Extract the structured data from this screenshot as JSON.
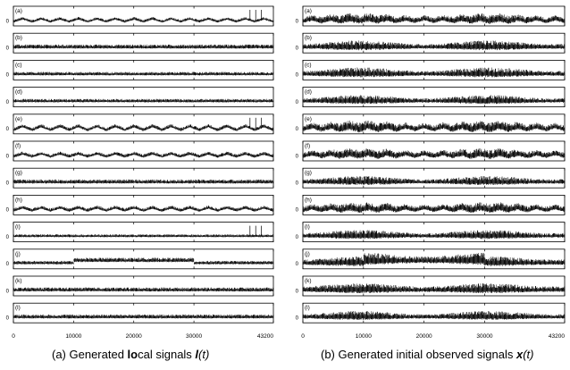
{
  "figure": {
    "captions": [
      {
        "prefix": "(a) Generated ",
        "bold": "lo",
        "middle": "cal signals ",
        "symbol": "l",
        "arg": "(t)"
      },
      {
        "prefix": "(b) Generated initial observed signals ",
        "bold": "",
        "middle": "",
        "symbol": "x",
        "arg": "(t)"
      }
    ]
  },
  "chart_data": [
    {
      "type": "line",
      "title": "",
      "caption": "(a) Generated local signals l(t)",
      "xlabel": "",
      "ylabel": "",
      "xlim": [
        0,
        43200
      ],
      "xticks": [
        0,
        10000,
        20000,
        30000,
        43200
      ],
      "ytick_label": "0",
      "grid": false,
      "series": [
        {
          "name": "",
          "panel_label": "(a)",
          "pattern": "sawtooth oscillation with noise",
          "cycles": 14,
          "amplitude": 0.35,
          "noise": 0.25,
          "spikes": 3
        },
        {
          "name": "",
          "panel_label": "(b)",
          "pattern": "noise",
          "cycles": 0,
          "amplitude": 0.0,
          "noise": 0.35,
          "spikes": 0
        },
        {
          "name": "",
          "panel_label": "(c)",
          "pattern": "noise",
          "cycles": 0,
          "amplitude": 0.0,
          "noise": 0.3,
          "spikes": 0
        },
        {
          "name": "",
          "panel_label": "(d)",
          "pattern": "noise",
          "cycles": 0,
          "amplitude": 0.0,
          "noise": 0.3,
          "spikes": 0
        },
        {
          "name": "",
          "panel_label": "(e)",
          "pattern": "sawtooth oscillation with noise",
          "cycles": 14,
          "amplitude": 0.45,
          "noise": 0.3,
          "spikes": 3
        },
        {
          "name": "",
          "panel_label": "(f)",
          "pattern": "sawtooth oscillation with noise",
          "cycles": 14,
          "amplitude": 0.35,
          "noise": 0.3,
          "spikes": 0
        },
        {
          "name": "",
          "panel_label": "(g)",
          "pattern": "noise",
          "cycles": 0,
          "amplitude": 0.0,
          "noise": 0.35,
          "spikes": 0
        },
        {
          "name": "",
          "panel_label": "(h)",
          "pattern": "sawtooth oscillation with noise",
          "cycles": 14,
          "amplitude": 0.35,
          "noise": 0.3,
          "spikes": 0
        },
        {
          "name": "",
          "panel_label": "(i)",
          "pattern": "noise",
          "cycles": 0,
          "amplitude": 0.0,
          "noise": 0.25,
          "spikes": 3
        },
        {
          "name": "",
          "panel_label": "(j)",
          "pattern": "step: raised level between 10000 and 30000",
          "cycles": 0,
          "amplitude": 0.0,
          "noise": 0.3,
          "spikes": 0,
          "step": [
            10000,
            30000
          ]
        },
        {
          "name": "",
          "panel_label": "(k)",
          "pattern": "noise",
          "cycles": 0,
          "amplitude": 0.0,
          "noise": 0.35,
          "spikes": 0
        },
        {
          "name": "",
          "panel_label": "(l)",
          "pattern": "noise",
          "cycles": 0,
          "amplitude": 0.0,
          "noise": 0.35,
          "spikes": 0
        }
      ]
    },
    {
      "type": "line",
      "title": "",
      "caption": "(b) Generated initial observed signals x(t)",
      "xlabel": "",
      "ylabel": "",
      "xlim": [
        0,
        43200
      ],
      "xticks": [
        0,
        10000,
        20000,
        30000,
        43200
      ],
      "ytick_label": "0",
      "grid": false,
      "series": [
        {
          "name": "",
          "panel_label": "(a)",
          "pattern": "slow envelope plus oscillation",
          "envelope": 0.6,
          "cycles": 14,
          "amplitude": 0.3,
          "noise": 0.55
        },
        {
          "name": "",
          "panel_label": "(b)",
          "pattern": "slow envelope",
          "envelope": 0.8,
          "cycles": 0,
          "amplitude": 0.0,
          "noise": 0.6
        },
        {
          "name": "",
          "panel_label": "(c)",
          "pattern": "slow envelope",
          "envelope": 0.8,
          "cycles": 0,
          "amplitude": 0.0,
          "noise": 0.6
        },
        {
          "name": "",
          "panel_label": "(d)",
          "pattern": "slow envelope",
          "envelope": 0.8,
          "cycles": 0,
          "amplitude": 0.0,
          "noise": 0.55
        },
        {
          "name": "",
          "panel_label": "(e)",
          "pattern": "slow envelope plus oscillation",
          "envelope": 0.6,
          "cycles": 14,
          "amplitude": 0.35,
          "noise": 0.6
        },
        {
          "name": "",
          "panel_label": "(f)",
          "pattern": "slow envelope plus oscillation",
          "envelope": 0.6,
          "cycles": 14,
          "amplitude": 0.3,
          "noise": 0.55
        },
        {
          "name": "",
          "panel_label": "(g)",
          "pattern": "slow envelope",
          "envelope": 0.8,
          "cycles": 0,
          "amplitude": 0.0,
          "noise": 0.55
        },
        {
          "name": "",
          "panel_label": "(h)",
          "pattern": "slow envelope plus oscillation",
          "envelope": 0.6,
          "cycles": 14,
          "amplitude": 0.3,
          "noise": 0.55
        },
        {
          "name": "",
          "panel_label": "(i)",
          "pattern": "slow envelope",
          "envelope": 0.8,
          "cycles": 0,
          "amplitude": 0.0,
          "noise": 0.55
        },
        {
          "name": "",
          "panel_label": "(j)",
          "pattern": "slow envelope with step between 10000 and 30000",
          "envelope": 0.7,
          "cycles": 0,
          "amplitude": 0.0,
          "noise": 0.6,
          "step": [
            10000,
            30000
          ]
        },
        {
          "name": "",
          "panel_label": "(k)",
          "pattern": "slow envelope",
          "envelope": 0.7,
          "cycles": 0,
          "amplitude": 0.0,
          "noise": 0.6
        },
        {
          "name": "",
          "panel_label": "(l)",
          "pattern": "slow envelope",
          "envelope": 0.8,
          "cycles": 0,
          "amplitude": 0.0,
          "noise": 0.55
        }
      ]
    }
  ]
}
